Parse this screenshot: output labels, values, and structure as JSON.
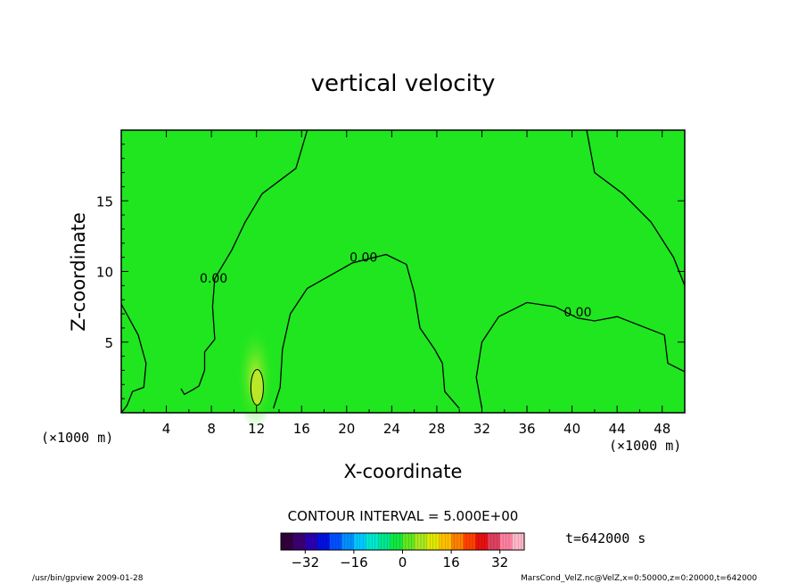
{
  "chart_data": {
    "type": "heatmap",
    "title": "vertical velocity",
    "xlabel": "X-coordinate",
    "ylabel": "Z-coordinate",
    "x_unit_left": "(×1000 m)",
    "x_unit_right": "(×1000 m)",
    "xlim": [
      0,
      50
    ],
    "ylim": [
      0,
      20
    ],
    "x_ticks": [
      4,
      8,
      12,
      16,
      20,
      24,
      28,
      32,
      36,
      40,
      44,
      48
    ],
    "y_ticks": [
      5,
      10,
      15
    ],
    "field_background_color": "#1fe61f",
    "contour_interval_text": "CONTOUR INTERVAL = 5.000E+00",
    "contour_labels": [
      {
        "text": "0.00",
        "x": 8.2,
        "y": 9.2
      },
      {
        "text": "0.00",
        "x": 21.5,
        "y": 10.7
      },
      {
        "text": "0.00",
        "x": 40.5,
        "y": 6.8
      }
    ],
    "zero_contours": [
      {
        "name": "left-tall-lobe",
        "points": [
          [
            16.5,
            20
          ],
          [
            15.5,
            17.3
          ],
          [
            12.5,
            15.5
          ],
          [
            11,
            13.5
          ],
          [
            9.8,
            11.5
          ],
          [
            8.3,
            9.5
          ],
          [
            8.1,
            7.5
          ],
          [
            8.3,
            5.2
          ],
          [
            7.4,
            4.3
          ],
          [
            7.4,
            3
          ],
          [
            6.9,
            1.9
          ],
          [
            6.3,
            1.6
          ],
          [
            5.6,
            1.3
          ],
          [
            5.3,
            1.7
          ]
        ]
      },
      {
        "name": "middle-lobe",
        "points": [
          [
            13.5,
            0.3
          ],
          [
            14.1,
            1.8
          ],
          [
            14.3,
            4.5
          ],
          [
            15,
            7
          ],
          [
            16.5,
            8.8
          ],
          [
            18.5,
            9.7
          ],
          [
            20.5,
            10.6
          ],
          [
            23.5,
            11.2
          ],
          [
            25.3,
            10.5
          ],
          [
            26,
            8.5
          ],
          [
            26.5,
            6
          ],
          [
            27.8,
            4.5
          ],
          [
            28.5,
            3.5
          ],
          [
            28.7,
            1.5
          ],
          [
            30,
            0.3
          ]
        ]
      },
      {
        "name": "right-lobe",
        "points": [
          [
            32,
            0.3
          ],
          [
            31.5,
            2.5
          ],
          [
            32,
            5
          ],
          [
            33.5,
            6.8
          ],
          [
            36,
            7.8
          ],
          [
            38.5,
            7.5
          ],
          [
            40.5,
            6.7
          ],
          [
            42,
            6.5
          ],
          [
            44,
            6.8
          ],
          [
            48.2,
            5.5
          ],
          [
            48.5,
            3.5
          ],
          [
            50,
            2.9
          ]
        ]
      },
      {
        "name": "right-top",
        "points": [
          [
            41.3,
            20
          ],
          [
            42,
            17
          ],
          [
            44.5,
            15.5
          ],
          [
            47,
            13.5
          ],
          [
            49,
            11
          ],
          [
            50,
            9
          ]
        ]
      },
      {
        "name": "left-edge",
        "points": [
          [
            0,
            7.7
          ],
          [
            1.5,
            5.5
          ],
          [
            2.2,
            3.5
          ],
          [
            2,
            1.8
          ],
          [
            1,
            1.5
          ],
          [
            0.5,
            0.5
          ],
          [
            0,
            0
          ]
        ]
      }
    ],
    "updraft_blob": {
      "x": 11.9,
      "z": 1.8,
      "label": "local maximum"
    },
    "colorbar": {
      "range": [
        -40,
        40
      ],
      "ticks": [
        -32,
        -16,
        0,
        16,
        32
      ],
      "colors": [
        "#30003a",
        "#3a0070",
        "#2a00b0",
        "#0010e0",
        "#0050ff",
        "#0090ff",
        "#00c8ff",
        "#00e8d0",
        "#00e890",
        "#10e840",
        "#60e820",
        "#a8e820",
        "#e0e800",
        "#ffc000",
        "#ff8000",
        "#ff4000",
        "#e81010",
        "#e04060",
        "#ff80a0",
        "#ffb8c8"
      ]
    },
    "time_label": "t=642000 s",
    "footer_left": "/usr/bin/gpview  2009-01-28",
    "footer_right": "MarsCond_VelZ.nc@VelZ,x=0:50000,z=0:20000,t=642000"
  }
}
